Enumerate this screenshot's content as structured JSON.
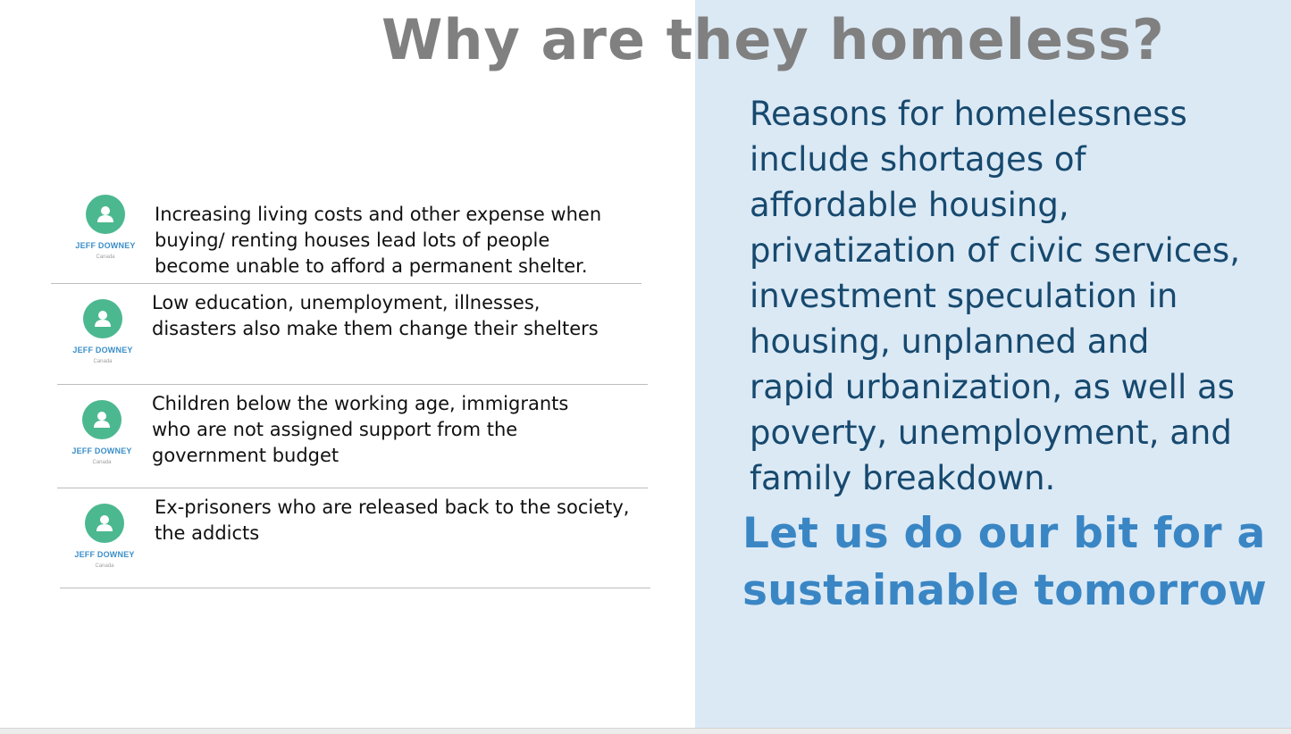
{
  "slide": {
    "title": "Why are they homeless?",
    "items": [
      {
        "avatar_name": "JEFF DOWNEY",
        "avatar_country": "Canada",
        "lines": [
          "Increasing living costs and other expense when",
          "buying/ renting houses lead lots of people",
          "become unable to afford a permanent shelter."
        ]
      },
      {
        "avatar_name": "JEFF DOWNEY",
        "avatar_country": "Canada",
        "lines": [
          "Low education, unemployment, illnesses,",
          "disasters also make them change their shelters"
        ]
      },
      {
        "avatar_name": "JEFF DOWNEY",
        "avatar_country": "Canada",
        "lines": [
          "Children below the working age, immigrants",
          "who are not assigned support from the",
          "government budget"
        ]
      },
      {
        "avatar_name": "JEFF DOWNEY",
        "avatar_country": "Canada",
        "lines": [
          "Ex-prisoners who are released back to the society,",
          "the addicts"
        ]
      }
    ],
    "reasons": {
      "lines": [
        "Reasons for homelessness",
        "include shortages of",
        "affordable housing,",
        "privatization of civic services,",
        "investment speculation in",
        "housing, unplanned and",
        "rapid urbanization, as well as",
        "poverty, unemployment, and",
        "family breakdown."
      ]
    },
    "call_to_action": {
      "lines": [
        "Let us do our bit for a",
        "sustainable tomorrow"
      ]
    },
    "colors": {
      "title": "#808080",
      "panel_background": "#dbe9f5",
      "reasons_text": "#17496e",
      "call_text": "#3a86c4",
      "avatar": "#4cb890",
      "avatar_name": "#3a8ec9"
    },
    "icons": {
      "avatar": "user-silhouette-icon"
    }
  }
}
